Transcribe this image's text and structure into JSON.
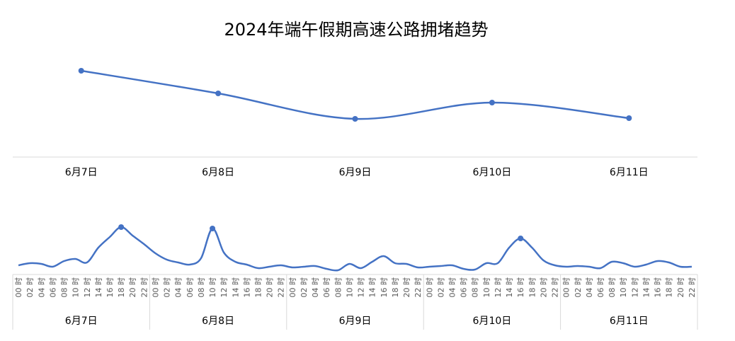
{
  "chart_data": [
    {
      "type": "line",
      "title": "2024年端午假期高速公路拥堵趋势",
      "categories": [
        "6月7日",
        "6月8日",
        "6月9日",
        "6月10日",
        "6月11日"
      ],
      "values": [
        150,
        118,
        82,
        105,
        83
      ],
      "smooth": true,
      "markers": "all",
      "color": "#4472C4",
      "grid": false,
      "legend": "none",
      "y_axis_shown": false
    },
    {
      "type": "line",
      "days": [
        "6月7日",
        "6月8日",
        "6月9日",
        "6月10日",
        "6月11日"
      ],
      "hours": [
        "00 时",
        "02 时",
        "04 时",
        "06 时",
        "08 时",
        "10 时",
        "12 时",
        "14 时",
        "16 时",
        "18 时",
        "20 时",
        "22 时"
      ],
      "values": [
        15,
        18,
        17,
        13,
        21,
        24,
        19,
        40,
        55,
        69,
        57,
        45,
        32,
        23,
        19,
        16,
        25,
        67,
        33,
        20,
        16,
        11,
        13,
        15,
        12,
        13,
        14,
        10,
        8,
        17,
        11,
        20,
        28,
        18,
        17,
        12,
        13,
        14,
        15,
        10,
        9,
        18,
        18,
        40,
        53,
        40,
        22,
        15,
        13,
        14,
        13,
        11,
        20,
        18,
        13,
        16,
        21,
        19,
        13,
        13
      ],
      "highlighted_peaks": [
        "6月7日 18 时",
        "6月8日 10 时",
        "6月10日 16 时"
      ],
      "smooth": true,
      "color": "#4472C4",
      "grid": false,
      "legend": "none",
      "y_axis_shown": false
    }
  ]
}
